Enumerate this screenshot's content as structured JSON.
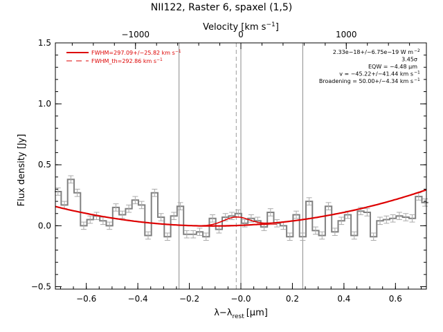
{
  "chart_data": {
    "type": "line",
    "title": "NII122, Raster 6, spaxel (1,5)",
    "xlabel_main": "λ−λ",
    "xlabel_sub": "rest",
    "xlabel_unit": "[μm]",
    "ylabel": "Flux density [Jy]",
    "top_axis_label": "Velocity [km s",
    "top_axis_label_sup": "−1",
    "top_axis_label_end": "]",
    "xlim": [
      -0.72,
      0.72
    ],
    "ylim": [
      -0.52,
      1.5
    ],
    "top_xlim": [
      -1760,
      1760
    ],
    "x_ticks": [
      -0.6,
      -0.4,
      -0.2,
      0.0,
      0.2,
      0.4,
      0.6
    ],
    "x_tick_labels": [
      "−0.6",
      "−0.4",
      "−0.2",
      "−0.0",
      "0.2",
      "0.4",
      "0.6"
    ],
    "y_ticks": [
      -0.5,
      0.0,
      0.5,
      1.0,
      1.5
    ],
    "y_tick_labels": [
      "−0.5",
      "0.0",
      "0.5",
      "1.0",
      "1.5"
    ],
    "top_ticks": [
      -1000,
      0,
      1000
    ],
    "top_tick_labels": [
      "−1000",
      "0",
      "1000"
    ],
    "vertical_lines": [
      -0.24,
      0.0,
      0.24
    ],
    "dashed_line": -0.018,
    "legend": [
      {
        "text": "FWHM=297.09+/−25.82 km s",
        "sup": "−1",
        "style": "solid",
        "color": "#dd0000"
      },
      {
        "text": "FWHM_th=292.86 km s",
        "sup": "−1",
        "style": "dashed",
        "color": "#dd0000"
      }
    ],
    "annotations": [
      {
        "text": "2.33e−18+/−6.75e−19 W m",
        "sup": "−2"
      },
      {
        "text": "3.45σ",
        "sup": ""
      },
      {
        "text": "EQW = −4.48 μm",
        "sup": ""
      },
      {
        "text": "v = −45.22+/−41.44 km s",
        "sup": "−1"
      },
      {
        "text": "Broadening = 50.00+/−4.34 km s",
        "sup": "−1"
      }
    ],
    "series": [
      {
        "kind": "step",
        "color": "#808080",
        "x": [
          -0.71,
          -0.685,
          -0.66,
          -0.635,
          -0.61,
          -0.585,
          -0.56,
          -0.535,
          -0.51,
          -0.485,
          -0.46,
          -0.435,
          -0.41,
          -0.385,
          -0.36,
          -0.335,
          -0.31,
          -0.285,
          -0.26,
          -0.235,
          -0.21,
          -0.185,
          -0.16,
          -0.135,
          -0.11,
          -0.085,
          -0.06,
          -0.035,
          -0.01,
          0.015,
          0.04,
          0.065,
          0.09,
          0.115,
          0.14,
          0.165,
          0.19,
          0.215,
          0.24,
          0.265,
          0.29,
          0.315,
          0.34,
          0.365,
          0.39,
          0.415,
          0.44,
          0.465,
          0.49,
          0.515,
          0.54,
          0.565,
          0.59,
          0.615,
          0.64,
          0.665,
          0.69,
          0.715
        ],
        "y": [
          0.28,
          0.17,
          0.38,
          0.27,
          0.0,
          0.05,
          0.08,
          0.04,
          0.0,
          0.15,
          0.09,
          0.14,
          0.21,
          0.17,
          -0.08,
          0.27,
          0.07,
          -0.09,
          0.08,
          0.16,
          -0.07,
          -0.07,
          -0.05,
          -0.09,
          0.06,
          -0.03,
          0.07,
          0.08,
          0.1,
          0.02,
          0.06,
          0.04,
          -0.01,
          0.11,
          0.02,
          0.0,
          -0.09,
          0.09,
          -0.09,
          0.2,
          -0.04,
          -0.08,
          0.16,
          -0.05,
          0.04,
          0.09,
          -0.08,
          0.12,
          0.11,
          -0.09,
          0.04,
          0.05,
          0.06,
          0.08,
          0.07,
          0.06,
          0.24,
          0.19
        ],
        "err": 0.03
      },
      {
        "kind": "fit",
        "color": "#dd0000",
        "continuum": {
          "a": 0.003,
          "b": 0.095,
          "c": 0.43
        },
        "gaussian": {
          "amp": 0.07,
          "center": -0.018,
          "sigma": 0.05
        }
      }
    ]
  }
}
